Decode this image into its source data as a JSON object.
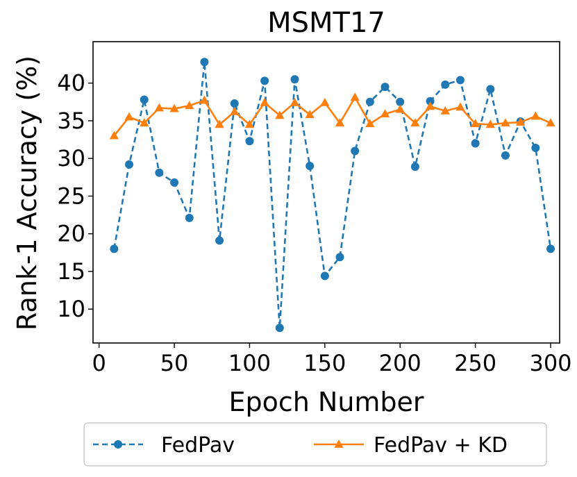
{
  "chart_data": {
    "type": "line",
    "title": "MSMT17",
    "xlabel": "Epoch Number",
    "ylabel": "Rank-1 Accuracy (%)",
    "xlim": [
      -4,
      306
    ],
    "ylim": [
      5.5,
      45.5
    ],
    "xticks": [
      0,
      50,
      100,
      150,
      200,
      250,
      300
    ],
    "yticks": [
      10,
      15,
      20,
      25,
      30,
      35,
      40
    ],
    "legend_position": "below",
    "x": [
      10,
      20,
      30,
      40,
      50,
      60,
      70,
      80,
      90,
      100,
      110,
      120,
      130,
      140,
      150,
      160,
      170,
      180,
      190,
      200,
      210,
      220,
      230,
      240,
      250,
      260,
      270,
      280,
      290,
      300
    ],
    "series": [
      {
        "name": "FedPav",
        "color": "#1f77b4",
        "line_style": "dashed",
        "marker": "circle",
        "values": [
          18.0,
          29.2,
          37.8,
          28.1,
          26.8,
          22.1,
          42.8,
          19.1,
          37.3,
          32.3,
          40.3,
          7.5,
          40.5,
          29.0,
          14.4,
          16.9,
          31.0,
          37.5,
          39.5,
          37.5,
          28.9,
          37.6,
          39.8,
          40.4,
          32.0,
          39.2,
          30.4,
          34.9,
          31.4,
          18.0
        ]
      },
      {
        "name": "FedPav + KD",
        "color": "#ff7f0e",
        "line_style": "solid",
        "marker": "triangle",
        "values": [
          33.0,
          35.5,
          34.7,
          36.7,
          36.6,
          37.0,
          37.7,
          34.5,
          36.2,
          34.5,
          37.4,
          35.7,
          37.4,
          35.8,
          37.4,
          34.7,
          38.1,
          34.6,
          35.9,
          36.5,
          34.7,
          36.9,
          36.3,
          36.8,
          34.6,
          34.5,
          34.7,
          34.8,
          35.6,
          34.7
        ]
      }
    ]
  }
}
